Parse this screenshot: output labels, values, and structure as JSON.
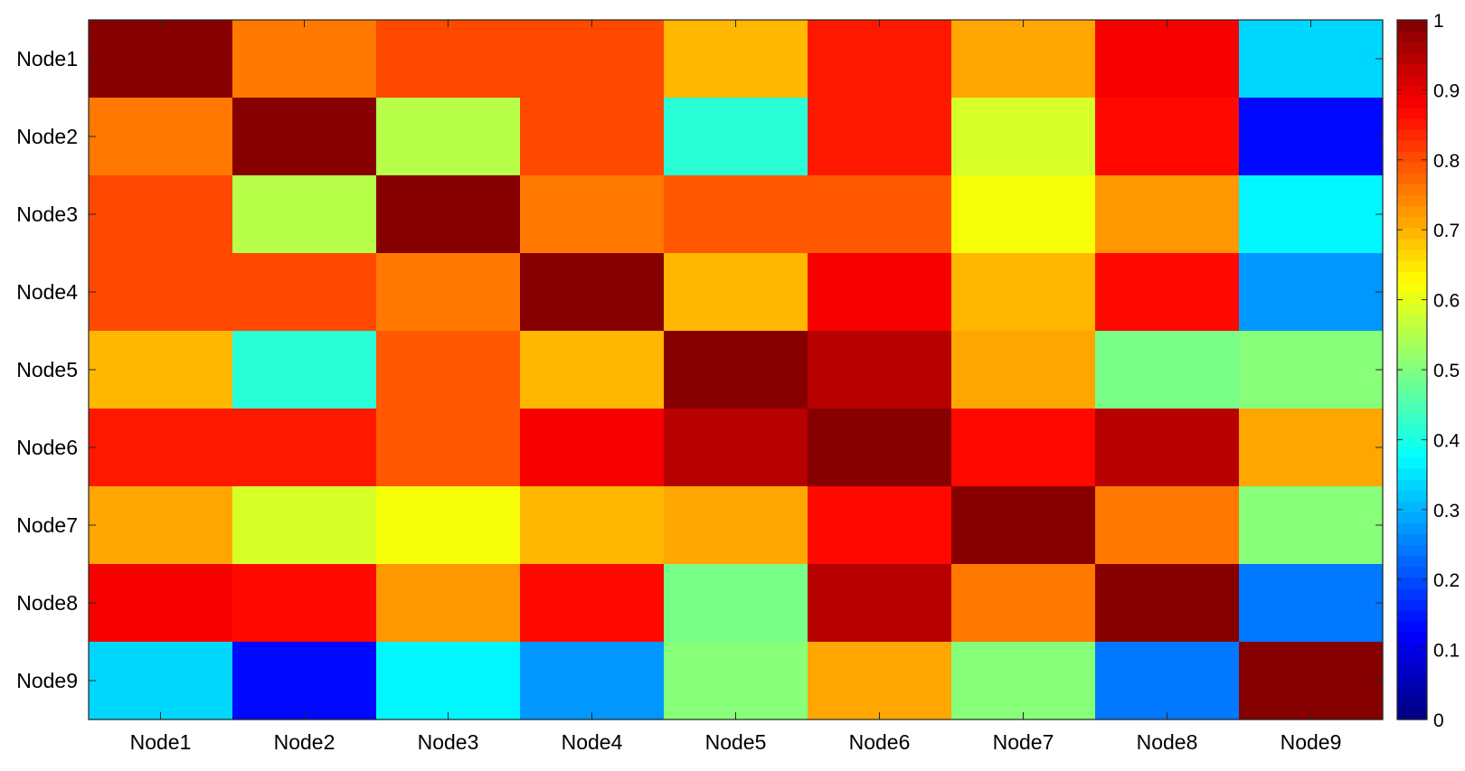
{
  "chart_data": {
    "type": "heatmap",
    "title": "",
    "xlabel": "",
    "ylabel": "",
    "x_categories": [
      "Node1",
      "Node2",
      "Node3",
      "Node4",
      "Node5",
      "Node6",
      "Node7",
      "Node8",
      "Node9"
    ],
    "y_categories": [
      "Node1",
      "Node2",
      "Node3",
      "Node4",
      "Node5",
      "Node6",
      "Node7",
      "Node8",
      "Node9"
    ],
    "values": [
      [
        1.0,
        0.76,
        0.8,
        0.81,
        0.69,
        0.85,
        0.71,
        0.89,
        0.33
      ],
      [
        0.76,
        1.0,
        0.56,
        0.81,
        0.41,
        0.85,
        0.59,
        0.86,
        0.14
      ],
      [
        0.8,
        0.56,
        1.0,
        0.75,
        0.79,
        0.79,
        0.61,
        0.72,
        0.36
      ],
      [
        0.81,
        0.81,
        0.75,
        1.0,
        0.69,
        0.89,
        0.69,
        0.87,
        0.28
      ],
      [
        0.69,
        0.41,
        0.79,
        0.69,
        1.0,
        0.94,
        0.71,
        0.49,
        0.51
      ],
      [
        0.85,
        0.85,
        0.79,
        0.89,
        0.94,
        1.0,
        0.86,
        0.95,
        0.71
      ],
      [
        0.71,
        0.59,
        0.61,
        0.69,
        0.71,
        0.86,
        1.0,
        0.76,
        0.51
      ],
      [
        0.89,
        0.86,
        0.72,
        0.87,
        0.49,
        0.95,
        0.76,
        1.0,
        0.24
      ],
      [
        0.33,
        0.14,
        0.36,
        0.28,
        0.51,
        0.71,
        0.51,
        0.24,
        1.0
      ]
    ],
    "colormap": "jet",
    "clim": [
      0,
      1
    ],
    "colorbar": {
      "ticks": [
        "0",
        "0.1",
        "0.2",
        "0.3",
        "0.4",
        "0.5",
        "0.6",
        "0.7",
        "0.8",
        "0.9",
        "1"
      ],
      "levels": 64,
      "placement": "right"
    },
    "grid": false
  }
}
